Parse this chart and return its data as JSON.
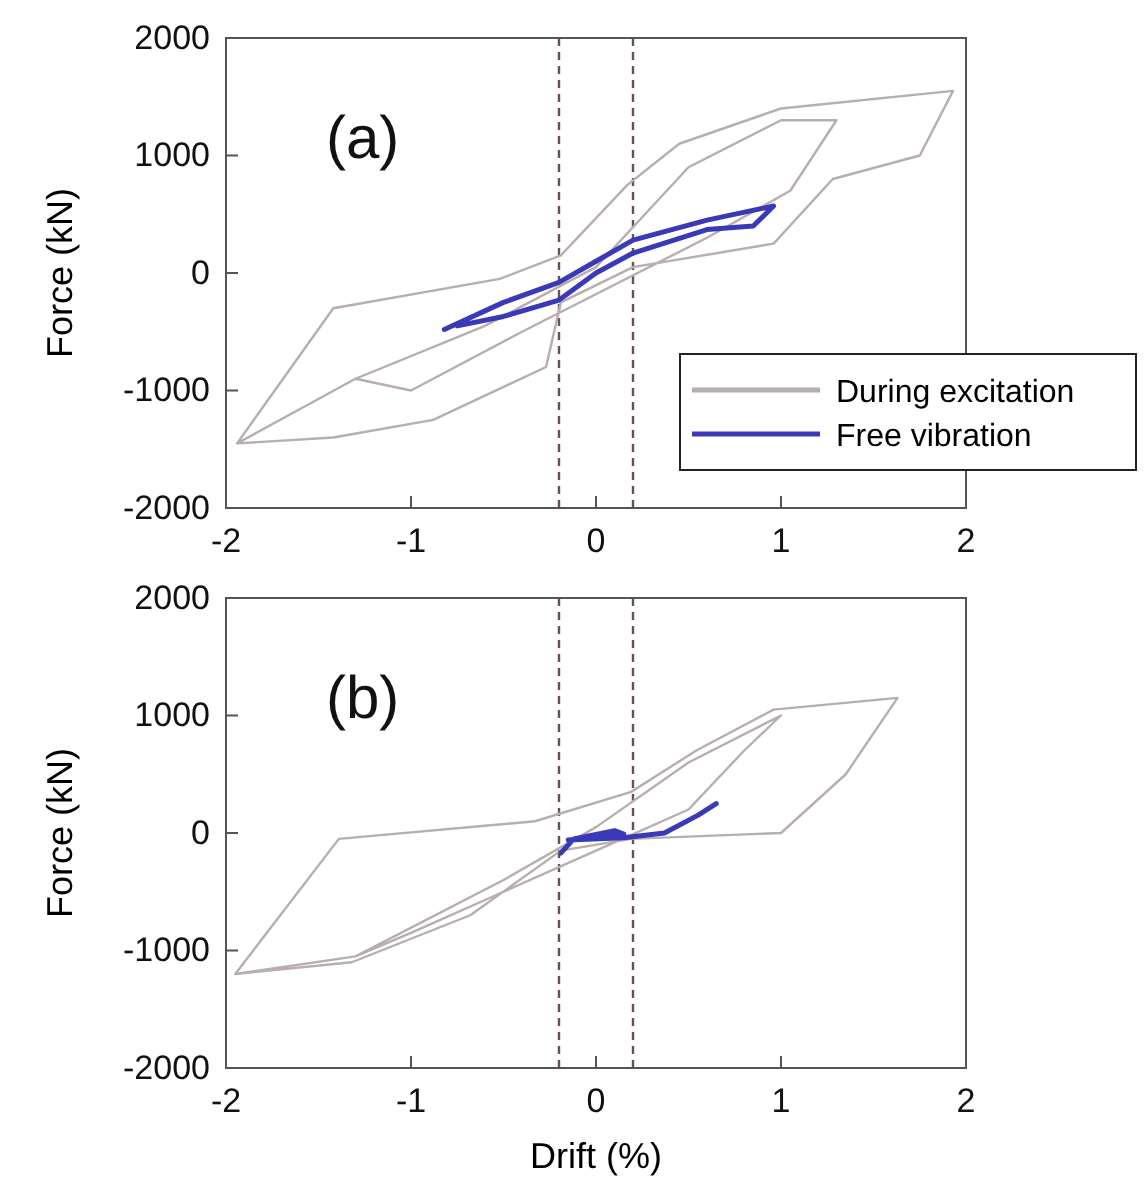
{
  "chart_data": [
    {
      "type": "line",
      "ylabel": "Force (kN)",
      "annotations": [
        "(a)"
      ],
      "xlim": [
        -2,
        2
      ],
      "ylim": [
        -2000,
        2000
      ],
      "xticks": [
        -2,
        -1,
        0,
        1,
        2
      ],
      "yticks": [
        -2000,
        -1000,
        0,
        1000,
        2000
      ],
      "grid": false,
      "legend": "bottom right",
      "marker": "none",
      "line_style": "solid",
      "ref_lines": [
        {
          "axis": "x",
          "value": -0.2,
          "color": "#6a5050",
          "line_style": "dashed"
        },
        {
          "axis": "x",
          "value": 0.2,
          "color": "#6a5050",
          "line_style": "dashed"
        }
      ],
      "series": [
        {
          "name": "During excitation",
          "color": "#b8aeae",
          "x": [
            -1.94,
            -1.42,
            -0.52,
            -0.19,
            0.17,
            0.45,
            1.0,
            1.93,
            1.75,
            1.28,
            0.96,
            0.2,
            -0.19,
            -0.27,
            -0.88,
            -1.42,
            -1.94,
            -1.3,
            -0.6,
            0,
            0.5,
            1.0,
            1.3,
            1.05,
            0.6,
            0.1,
            -0.4,
            -1.0,
            -1.3
          ],
          "values": [
            -1450,
            -300,
            -50,
            150,
            750,
            1100,
            1400,
            1550,
            1000,
            800,
            250,
            50,
            -250,
            -800,
            -1250,
            -1400,
            -1450,
            -900,
            -450,
            50,
            900,
            1300,
            1300,
            700,
            300,
            -100,
            -500,
            -1000,
            -900
          ]
        },
        {
          "name": "Free vibration",
          "color": "#3a3ab8",
          "x": [
            -0.82,
            -0.5,
            -0.2,
            0,
            0.2,
            0.6,
            0.96,
            0.85,
            0.6,
            0.2,
            0,
            -0.2,
            -0.5,
            -0.75
          ],
          "values": [
            -480,
            -250,
            -80,
            100,
            280,
            450,
            570,
            400,
            370,
            170,
            0,
            -230,
            -370,
            -450
          ]
        }
      ]
    },
    {
      "type": "line",
      "xlabel": "Drift (%)",
      "ylabel": "Force (kN)",
      "annotations": [
        "(b)"
      ],
      "xlim": [
        -2,
        2
      ],
      "ylim": [
        -2000,
        2000
      ],
      "xticks": [
        -2,
        -1,
        0,
        1,
        2
      ],
      "yticks": [
        -2000,
        -1000,
        0,
        1000,
        2000
      ],
      "grid": false,
      "marker": "none",
      "line_style": "solid",
      "ref_lines": [
        {
          "axis": "x",
          "value": -0.2,
          "color": "#6a5050",
          "line_style": "dashed"
        },
        {
          "axis": "x",
          "value": 0.2,
          "color": "#6a5050",
          "line_style": "dashed"
        }
      ],
      "series": [
        {
          "color": "#b8aeae",
          "x": [
            -1.95,
            -1.39,
            -0.33,
            0.19,
            0.54,
            0.96,
            1.63,
            1.35,
            1.0,
            0.19,
            -0.19,
            -0.68,
            -1.32,
            -1.95,
            -1.3,
            -0.5,
            0,
            0.5,
            1.0,
            0.8,
            0.5,
            0,
            -0.5,
            -1.0,
            -1.3
          ],
          "values": [
            -1200,
            -50,
            100,
            350,
            700,
            1050,
            1150,
            500,
            0,
            -50,
            -150,
            -700,
            -1100,
            -1200,
            -1050,
            -400,
            50,
            600,
            1000,
            700,
            200,
            -150,
            -500,
            -850,
            -1050
          ]
        },
        {
          "color": "#3a3ab8",
          "x": [
            -0.19,
            -0.12,
            0.1,
            0.15,
            0.0,
            -0.15,
            0.15,
            0.37,
            0.55,
            0.65
          ],
          "values": [
            -170,
            -50,
            20,
            -10,
            -40,
            -60,
            -40,
            0,
            150,
            250
          ]
        }
      ]
    }
  ]
}
